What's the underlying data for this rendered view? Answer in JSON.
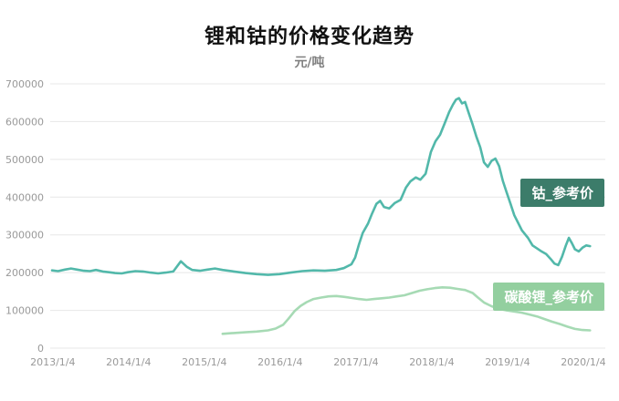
{
  "chart_data": {
    "type": "line",
    "title": "锂和钴的价格变化趋势",
    "subtitle": "元/吨",
    "grid": "horizontal",
    "legend_position": "right-inline-labels",
    "ylim": [
      0,
      700000
    ],
    "yticks": [
      0,
      100000,
      200000,
      300000,
      400000,
      500000,
      600000,
      700000
    ],
    "ytick_labels": [
      "0",
      "100000",
      "200000",
      "300000",
      "400000",
      "500000",
      "600000",
      "700000"
    ],
    "xlim": [
      2013.0,
      2020.12
    ],
    "xticks": [
      2013.01,
      2014.01,
      2015.01,
      2016.01,
      2017.01,
      2018.01,
      2019.01,
      2020.01
    ],
    "xtick_labels": [
      "2013/1/4",
      "2014/1/4",
      "2015/1/4",
      "2016/1/4",
      "2017/1/4",
      "2018/1/4",
      "2019/1/4",
      "2020/1/4"
    ],
    "colors": {
      "cobalt_line": "#52b8aa",
      "cobalt_label_bg": "#3c7c6a",
      "lithium_line": "#a6dab4",
      "lithium_label_bg": "#93cf9f",
      "gridline": "#e7e7e7",
      "tick_text": "#999999"
    },
    "series": [
      {
        "id": "cobalt",
        "name": "钴_参考价",
        "color": "#52b8aa",
        "label_bg": "#3c7c6a",
        "points": [
          [
            2013.0,
            206000
          ],
          [
            2013.08,
            204000
          ],
          [
            2013.17,
            208000
          ],
          [
            2013.25,
            211000
          ],
          [
            2013.33,
            208000
          ],
          [
            2013.42,
            205000
          ],
          [
            2013.5,
            204000
          ],
          [
            2013.58,
            207000
          ],
          [
            2013.67,
            203000
          ],
          [
            2013.75,
            201000
          ],
          [
            2013.83,
            199000
          ],
          [
            2013.92,
            198000
          ],
          [
            2014.0,
            201000
          ],
          [
            2014.1,
            204000
          ],
          [
            2014.2,
            203000
          ],
          [
            2014.3,
            200000
          ],
          [
            2014.4,
            198000
          ],
          [
            2014.5,
            200000
          ],
          [
            2014.6,
            203000
          ],
          [
            2014.7,
            230000
          ],
          [
            2014.78,
            215000
          ],
          [
            2014.85,
            207000
          ],
          [
            2014.95,
            205000
          ],
          [
            2015.05,
            208000
          ],
          [
            2015.15,
            211000
          ],
          [
            2015.25,
            207000
          ],
          [
            2015.4,
            203000
          ],
          [
            2015.55,
            199000
          ],
          [
            2015.7,
            196000
          ],
          [
            2015.85,
            194000
          ],
          [
            2016.0,
            196000
          ],
          [
            2016.15,
            200000
          ],
          [
            2016.3,
            204000
          ],
          [
            2016.45,
            206000
          ],
          [
            2016.6,
            205000
          ],
          [
            2016.75,
            207000
          ],
          [
            2016.85,
            212000
          ],
          [
            2016.95,
            222000
          ],
          [
            2017.0,
            240000
          ],
          [
            2017.05,
            275000
          ],
          [
            2017.1,
            305000
          ],
          [
            2017.17,
            330000
          ],
          [
            2017.22,
            355000
          ],
          [
            2017.28,
            382000
          ],
          [
            2017.33,
            390000
          ],
          [
            2017.38,
            374000
          ],
          [
            2017.45,
            370000
          ],
          [
            2017.52,
            384000
          ],
          [
            2017.6,
            393000
          ],
          [
            2017.67,
            425000
          ],
          [
            2017.73,
            442000
          ],
          [
            2017.8,
            452000
          ],
          [
            2017.86,
            446000
          ],
          [
            2017.93,
            462000
          ],
          [
            2018.0,
            520000
          ],
          [
            2018.06,
            548000
          ],
          [
            2018.12,
            565000
          ],
          [
            2018.18,
            595000
          ],
          [
            2018.24,
            625000
          ],
          [
            2018.29,
            645000
          ],
          [
            2018.33,
            658000
          ],
          [
            2018.37,
            662000
          ],
          [
            2018.41,
            648000
          ],
          [
            2018.45,
            652000
          ],
          [
            2018.5,
            622000
          ],
          [
            2018.55,
            592000
          ],
          [
            2018.6,
            560000
          ],
          [
            2018.65,
            532000
          ],
          [
            2018.7,
            492000
          ],
          [
            2018.75,
            480000
          ],
          [
            2018.8,
            496000
          ],
          [
            2018.85,
            502000
          ],
          [
            2018.9,
            482000
          ],
          [
            2018.95,
            442000
          ],
          [
            2019.0,
            412000
          ],
          [
            2019.05,
            382000
          ],
          [
            2019.1,
            352000
          ],
          [
            2019.15,
            332000
          ],
          [
            2019.2,
            312000
          ],
          [
            2019.28,
            292000
          ],
          [
            2019.34,
            272000
          ],
          [
            2019.4,
            264000
          ],
          [
            2019.46,
            256000
          ],
          [
            2019.52,
            249000
          ],
          [
            2019.58,
            236000
          ],
          [
            2019.63,
            224000
          ],
          [
            2019.68,
            220000
          ],
          [
            2019.73,
            242000
          ],
          [
            2019.78,
            272000
          ],
          [
            2019.82,
            292000
          ],
          [
            2019.86,
            278000
          ],
          [
            2019.9,
            262000
          ],
          [
            2019.95,
            256000
          ],
          [
            2020.0,
            266000
          ],
          [
            2020.05,
            272000
          ],
          [
            2020.1,
            270000
          ]
        ]
      },
      {
        "id": "lithium",
        "name": "碳酸锂_参考价",
        "color": "#a6dab4",
        "label_bg": "#93cf9f",
        "points": [
          [
            2015.25,
            38000
          ],
          [
            2015.4,
            40000
          ],
          [
            2015.55,
            42000
          ],
          [
            2015.7,
            44000
          ],
          [
            2015.85,
            47000
          ],
          [
            2015.95,
            52000
          ],
          [
            2016.05,
            62000
          ],
          [
            2016.12,
            78000
          ],
          [
            2016.2,
            98000
          ],
          [
            2016.28,
            112000
          ],
          [
            2016.36,
            122000
          ],
          [
            2016.45,
            130000
          ],
          [
            2016.55,
            134000
          ],
          [
            2016.65,
            137000
          ],
          [
            2016.75,
            138000
          ],
          [
            2016.85,
            136000
          ],
          [
            2016.95,
            133000
          ],
          [
            2017.05,
            130000
          ],
          [
            2017.15,
            128000
          ],
          [
            2017.25,
            130000
          ],
          [
            2017.35,
            132000
          ],
          [
            2017.45,
            134000
          ],
          [
            2017.55,
            137000
          ],
          [
            2017.65,
            140000
          ],
          [
            2017.75,
            146000
          ],
          [
            2017.85,
            152000
          ],
          [
            2017.95,
            156000
          ],
          [
            2018.05,
            159000
          ],
          [
            2018.15,
            161000
          ],
          [
            2018.25,
            160000
          ],
          [
            2018.35,
            157000
          ],
          [
            2018.45,
            154000
          ],
          [
            2018.55,
            146000
          ],
          [
            2018.62,
            134000
          ],
          [
            2018.7,
            121000
          ],
          [
            2018.8,
            111000
          ],
          [
            2018.9,
            104000
          ],
          [
            2019.0,
            100000
          ],
          [
            2019.1,
            97000
          ],
          [
            2019.2,
            94000
          ],
          [
            2019.3,
            89000
          ],
          [
            2019.4,
            84000
          ],
          [
            2019.5,
            77000
          ],
          [
            2019.6,
            70000
          ],
          [
            2019.7,
            64000
          ],
          [
            2019.8,
            57000
          ],
          [
            2019.9,
            51000
          ],
          [
            2020.0,
            48000
          ],
          [
            2020.1,
            47000
          ]
        ]
      }
    ]
  }
}
